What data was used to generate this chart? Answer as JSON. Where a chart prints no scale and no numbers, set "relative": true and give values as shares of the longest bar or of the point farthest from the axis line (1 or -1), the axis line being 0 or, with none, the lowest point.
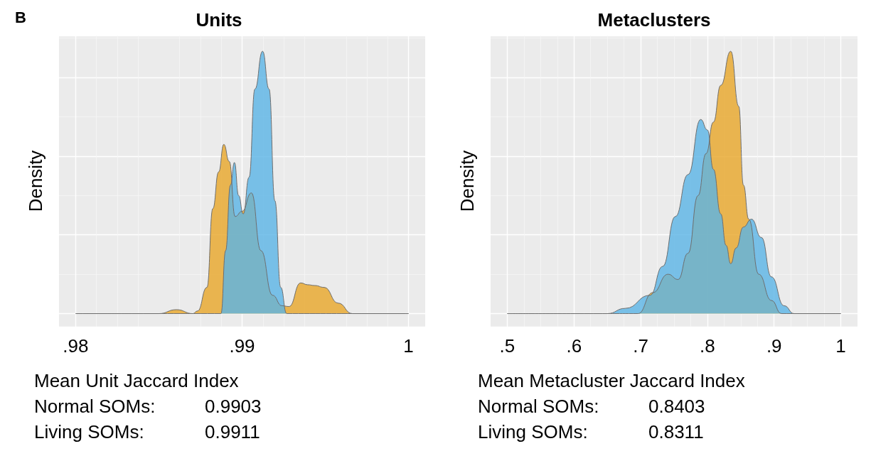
{
  "chart_data": [
    {
      "type": "area",
      "title": "Units",
      "subtitle": "B",
      "ylabel": "Density",
      "relative": true,
      "grid": true,
      "marker": "none",
      "xlim": [
        0.979,
        1.001
      ],
      "xticks": [
        {
          "value": 0.98,
          "label": ".98"
        },
        {
          "value": 0.99,
          "label": ".99"
        },
        1
      ],
      "series": [
        {
          "color": "#e8a628",
          "x": [
            0.98,
            0.985,
            0.98606,
            0.98704,
            0.98732,
            0.98789,
            0.98824,
            0.98859,
            0.9889,
            0.98923,
            0.98958,
            0.99,
            0.99056,
            0.99113,
            0.99183,
            0.99239,
            0.99282,
            0.99352,
            0.99394,
            0.99437,
            0.99493,
            0.99577,
            0.99662,
            1
          ],
          "values": [
            0,
            0,
            0.015,
            0,
            0.01,
            0.1,
            0.4,
            0.54,
            0.645,
            0.58,
            0.37,
            0.39,
            0.46,
            0.24,
            0.07,
            0.03,
            0.027,
            0.117,
            0.11,
            0.107,
            0.1,
            0.04,
            0,
            0
          ]
        },
        {
          "color": "#5ab4e6",
          "x": [
            0.98,
            0.98873,
            0.98901,
            0.9893,
            0.98954,
            0.98979,
            0.99007,
            0.99042,
            0.99077,
            0.99123,
            0.99162,
            0.99197,
            0.99232,
            0.99268,
            1
          ],
          "values": [
            0,
            0,
            0.24,
            0.49,
            0.576,
            0.45,
            0.38,
            0.52,
            0.856,
            1,
            0.856,
            0.43,
            0.1,
            0,
            0
          ]
        }
      ],
      "annotations": [
        "Mean Unit Jaccard Index",
        "Normal SOMs: 0.9903",
        "Living SOMs: 0.9911"
      ]
    },
    {
      "type": "area",
      "title": "Metaclusters",
      "ylabel": "Density",
      "relative": true,
      "grid": true,
      "marker": "none",
      "xlim": [
        0.475,
        1.025
      ],
      "xticks": [
        {
          "value": 0.5,
          "label": ".5"
        },
        {
          "value": 0.6,
          "label": ".6"
        },
        {
          "value": 0.7,
          "label": ".7"
        },
        {
          "value": 0.8,
          "label": ".8"
        },
        {
          "value": 0.9,
          "label": ".9"
        },
        1
      ],
      "series": [
        {
          "color": "#e8a628",
          "x": [
            0.5,
            0.65,
            0.696,
            0.718,
            0.741,
            0.756,
            0.771,
            0.786,
            0.798,
            0.809,
            0.82,
            0.835,
            0.847,
            0.854,
            0.862,
            0.877,
            0.896,
            0.911,
            1
          ],
          "values": [
            0,
            0,
            0,
            0.08,
            0.15,
            0.13,
            0.23,
            0.45,
            0.61,
            0.73,
            0.87,
            1,
            0.79,
            0.49,
            0.36,
            0.15,
            0.05,
            0,
            0
          ]
        },
        {
          "color": "#5ab4e6",
          "x": [
            0.5,
            0.65,
            0.677,
            0.714,
            0.733,
            0.752,
            0.771,
            0.79,
            0.8,
            0.809,
            0.82,
            0.828,
            0.835,
            0.843,
            0.854,
            0.866,
            0.881,
            0.896,
            0.915,
            0.93,
            1
          ],
          "values": [
            0,
            0,
            0.02,
            0.07,
            0.18,
            0.37,
            0.53,
            0.74,
            0.7,
            0.55,
            0.38,
            0.26,
            0.19,
            0.25,
            0.33,
            0.36,
            0.29,
            0.14,
            0.03,
            0,
            0
          ]
        }
      ],
      "annotations": [
        "Mean Metacluster Jaccard Index",
        "Normal SOMs: 0.8403",
        "Living SOMs: 0.8311"
      ]
    }
  ]
}
